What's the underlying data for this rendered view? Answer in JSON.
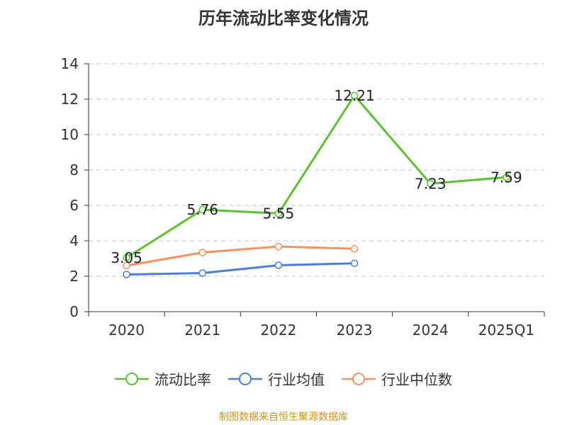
{
  "chart_data": {
    "type": "line",
    "title": "历年流动比率变化情况",
    "categories": [
      "2020",
      "2021",
      "2022",
      "2023",
      "2024",
      "2025Q1"
    ],
    "ylim": [
      0,
      14
    ],
    "yticks": [
      0,
      2,
      4,
      6,
      8,
      10,
      12,
      14
    ],
    "grid": true,
    "legend_position": "bottom",
    "series": [
      {
        "name": "流动比率",
        "color": "#5cc234",
        "values": [
          3.05,
          5.76,
          5.55,
          12.21,
          7.23,
          7.59
        ],
        "labels": [
          "3.05",
          "5.76",
          "5.55",
          "12.21",
          "7.23",
          "7.59"
        ]
      },
      {
        "name": "行业均值",
        "color": "#4a7fdc",
        "values": [
          2.1,
          2.18,
          2.62,
          2.73,
          null,
          null
        ]
      },
      {
        "name": "行业中位数",
        "color": "#f5925d",
        "values": [
          2.6,
          3.34,
          3.68,
          3.55,
          null,
          null
        ]
      }
    ]
  },
  "footer": "制图数据来自恒生聚源数据库"
}
